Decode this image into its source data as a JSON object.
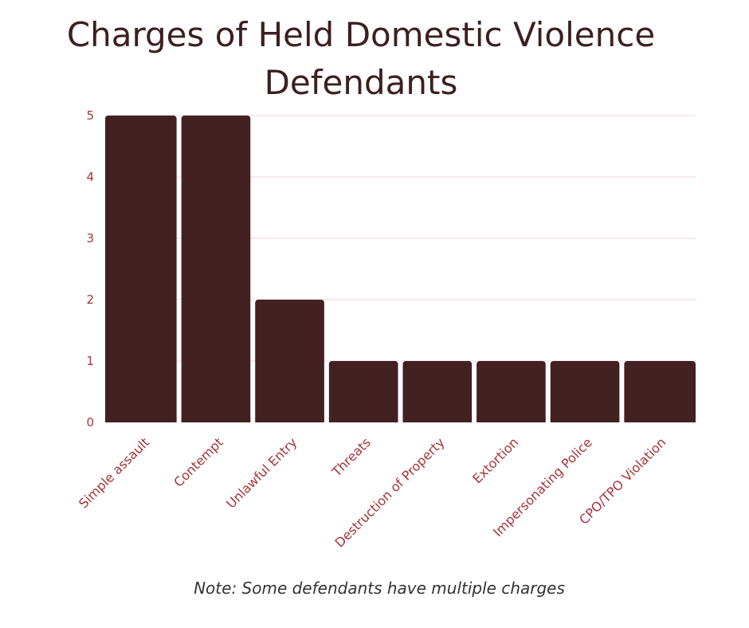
{
  "chart_data": {
    "type": "bar",
    "title_lines": [
      "Charges of Held Domestic Violence",
      "Defendants"
    ],
    "categories": [
      "Simple assault",
      "Contempt",
      "Unlawful Entry",
      "Threats",
      "Destruction of Property",
      "Extortion",
      "Impersonating Police",
      "CPO/TPO Violation"
    ],
    "values": [
      5,
      5,
      2,
      1,
      1,
      1,
      1,
      1
    ],
    "ylim": [
      0,
      5
    ],
    "yticks": [
      0,
      1,
      2,
      3,
      4,
      5
    ],
    "grid": true,
    "legend": "none",
    "bar_color": "#432021",
    "label_color": "#a5333a",
    "note": "Note: Some defendants have multiple charges"
  }
}
